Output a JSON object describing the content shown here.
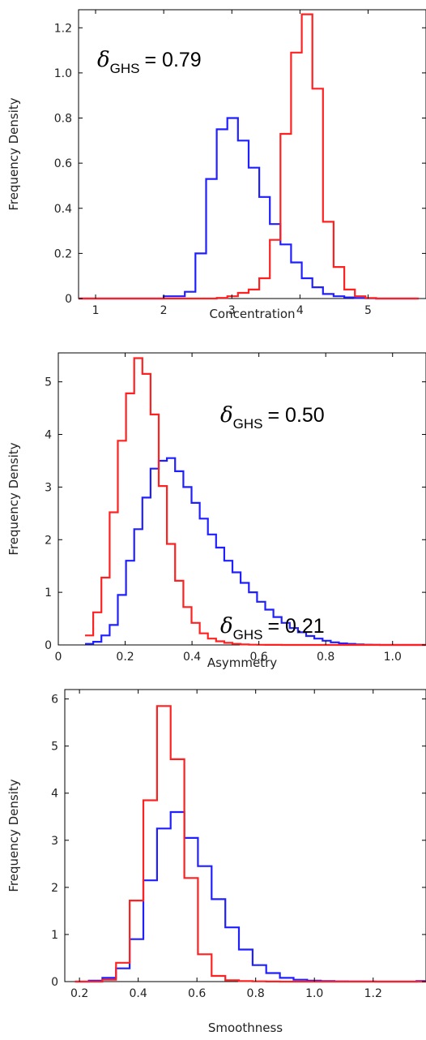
{
  "chart_data": [
    {
      "type": "histogram",
      "xlabel": "Concentration",
      "ylabel": "Frequency Density",
      "xlim": [
        0.75,
        5.85
      ],
      "ylim": [
        0,
        1.28
      ],
      "xticks": [
        1,
        2,
        3,
        4,
        5
      ],
      "yticks": [
        0,
        0.2,
        0.4,
        0.6,
        0.8,
        1.0,
        1.2
      ],
      "ytick_labels": [
        "0",
        "0.2",
        "0.4",
        "0.6",
        "0.8",
        "1.0",
        "1.2"
      ],
      "annotation": {
        "symbol": "δ",
        "subscript": "GHS",
        "value_text": "= 0.79"
      },
      "series": [
        {
          "color": "#1f1fff",
          "bin_start": 0.75,
          "bin_width": 0.156,
          "values": [
            0,
            0,
            0,
            0,
            0,
            0,
            0,
            0,
            0.01,
            0.01,
            0.03,
            0.2,
            0.53,
            0.75,
            0.8,
            0.7,
            0.58,
            0.45,
            0.33,
            0.24,
            0.16,
            0.09,
            0.05,
            0.02,
            0.01,
            0.005,
            0.002,
            0.001,
            0,
            0,
            0,
            0
          ]
        },
        {
          "color": "#ff2020",
          "bin_start": 0.75,
          "bin_width": 0.156,
          "values": [
            0,
            0,
            0,
            0,
            0,
            0,
            0,
            0,
            0,
            0,
            0,
            0,
            0,
            0.003,
            0.01,
            0.025,
            0.04,
            0.09,
            0.26,
            0.73,
            1.09,
            1.26,
            0.93,
            0.34,
            0.14,
            0.04,
            0.01,
            0.002,
            0,
            0,
            0,
            0
          ]
        }
      ]
    },
    {
      "type": "histogram",
      "xlabel": "Asymmetry",
      "ylabel": "Frequency Density",
      "xlim": [
        0,
        1.1
      ],
      "ylim": [
        0,
        5.55
      ],
      "xticks": [
        0,
        0.2,
        0.4,
        0.6,
        0.8,
        1.0
      ],
      "xtick_labels": [
        "0",
        "0.2",
        "0.4",
        "0.6",
        "0.8",
        "1.0"
      ],
      "yticks": [
        0,
        1,
        2,
        3,
        4,
        5
      ],
      "annotation": {
        "symbol": "δ",
        "subscript": "GHS",
        "value_text": "= 0.50"
      },
      "series": [
        {
          "color": "#1f1fff",
          "bin_start": 0.08,
          "bin_width": 0.0245,
          "values": [
            0.02,
            0.06,
            0.18,
            0.38,
            0.95,
            1.6,
            2.2,
            2.8,
            3.35,
            3.5,
            3.55,
            3.3,
            3.0,
            2.7,
            2.4,
            2.1,
            1.85,
            1.6,
            1.38,
            1.18,
            1.0,
            0.82,
            0.67,
            0.53,
            0.42,
            0.32,
            0.24,
            0.17,
            0.12,
            0.08,
            0.05,
            0.03,
            0.02,
            0.01,
            0.005,
            0.002,
            0,
            0,
            0,
            0,
            0,
            0
          ]
        },
        {
          "color": "#ff2020",
          "bin_start": 0.08,
          "bin_width": 0.0245,
          "values": [
            0.18,
            0.62,
            1.28,
            2.52,
            3.88,
            4.78,
            5.45,
            5.15,
            4.38,
            3.02,
            1.92,
            1.22,
            0.72,
            0.42,
            0.22,
            0.12,
            0.07,
            0.04,
            0.02,
            0.01,
            0.005,
            0.003,
            0.002,
            0.001,
            0,
            0,
            0,
            0,
            0,
            0,
            0,
            0,
            0,
            0,
            0,
            0,
            0,
            0,
            0,
            0,
            0,
            0
          ]
        }
      ]
    },
    {
      "type": "histogram",
      "xlabel": "Smoothness",
      "ylabel": "Frequency Density",
      "xlim": [
        0.15,
        1.38
      ],
      "ylim": [
        0,
        6.2
      ],
      "xticks": [
        0.2,
        0.4,
        0.6,
        0.8,
        1.0,
        1.2
      ],
      "xtick_labels": [
        "0.2",
        "0.4",
        "0.6",
        "0.8",
        "1.0",
        "1.2"
      ],
      "yticks": [
        0,
        1,
        2,
        3,
        4,
        5,
        6
      ],
      "annotation": {
        "symbol": "δ",
        "subscript": "GHS",
        "value_text": "= 0.21"
      },
      "series": [
        {
          "color": "#1f1fff",
          "bin_start": 0.185,
          "bin_width": 0.0465,
          "values": [
            0,
            0.02,
            0.08,
            0.28,
            0.9,
            2.15,
            3.25,
            3.6,
            3.05,
            2.45,
            1.75,
            1.15,
            0.68,
            0.35,
            0.18,
            0.08,
            0.04,
            0.02,
            0.01,
            0.005,
            0.002,
            0.001,
            0,
            0,
            0,
            0.01
          ]
        },
        {
          "color": "#ff2020",
          "bin_start": 0.185,
          "bin_width": 0.0465,
          "values": [
            0,
            0,
            0.04,
            0.4,
            1.72,
            3.85,
            5.85,
            4.72,
            2.2,
            0.58,
            0.12,
            0.03,
            0.01,
            0.005,
            0.001,
            0,
            0,
            0,
            0,
            0,
            0,
            0,
            0,
            0,
            0,
            0
          ]
        }
      ]
    }
  ]
}
